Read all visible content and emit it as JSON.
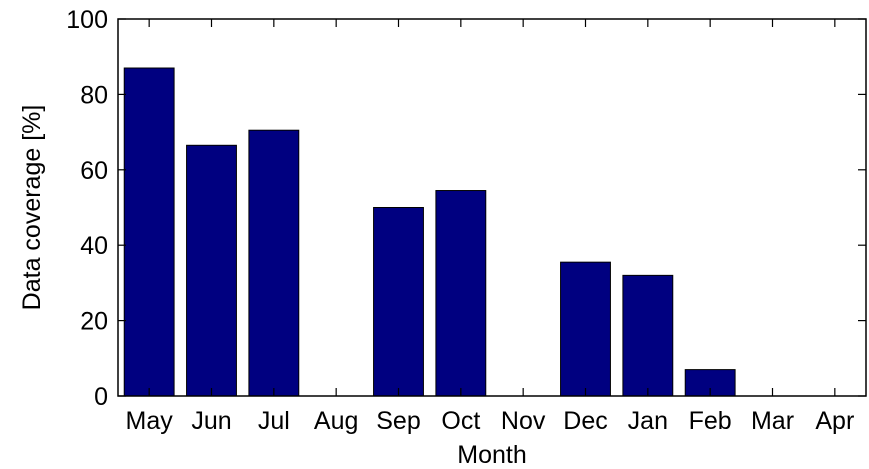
{
  "chart_data": {
    "type": "bar",
    "title": "",
    "xlabel": "Month",
    "ylabel": "Data coverage [%]",
    "categories": [
      "May",
      "Jun",
      "Jul",
      "Aug",
      "Sep",
      "Oct",
      "Nov",
      "Dec",
      "Jan",
      "Feb",
      "Mar",
      "Apr"
    ],
    "values": [
      87,
      66.5,
      70.5,
      0,
      50,
      54.5,
      0,
      35.5,
      32,
      7,
      0,
      0
    ],
    "ylim": [
      0,
      100
    ],
    "yticks": [
      0,
      20,
      40,
      60,
      80,
      100
    ],
    "grid": false,
    "bar_color": "#000080"
  }
}
